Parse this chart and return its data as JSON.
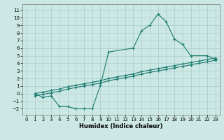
{
  "line1_x": [
    1,
    2,
    3,
    4,
    5,
    6,
    7,
    8,
    9,
    10,
    13,
    14,
    15,
    16,
    17,
    18,
    19,
    20,
    22,
    23
  ],
  "line1_y": [
    0.0,
    -0.5,
    -0.3,
    -1.7,
    -1.7,
    -2.0,
    -2.0,
    -2.0,
    1.1,
    5.5,
    6.0,
    8.3,
    9.0,
    10.5,
    9.5,
    7.2,
    6.5,
    5.0,
    5.0,
    4.5
  ],
  "line2_x": [
    1,
    2,
    3,
    4,
    5,
    6,
    7,
    8,
    9,
    10,
    11,
    12,
    13,
    14,
    15,
    16,
    17,
    18,
    19,
    20,
    21,
    22,
    23
  ],
  "line2_y": [
    0.0,
    0.2,
    0.4,
    0.6,
    0.9,
    1.1,
    1.3,
    1.5,
    1.7,
    2.0,
    2.2,
    2.4,
    2.6,
    2.9,
    3.1,
    3.3,
    3.5,
    3.7,
    3.9,
    4.1,
    4.3,
    4.5,
    4.7
  ],
  "line3_x": [
    1,
    2,
    3,
    4,
    5,
    6,
    7,
    8,
    9,
    10,
    11,
    12,
    13,
    14,
    15,
    16,
    17,
    18,
    19,
    20,
    21,
    22,
    23
  ],
  "line3_y": [
    -0.3,
    -0.1,
    0.1,
    0.3,
    0.6,
    0.8,
    1.0,
    1.2,
    1.4,
    1.7,
    1.9,
    2.1,
    2.3,
    2.6,
    2.8,
    3.0,
    3.2,
    3.4,
    3.6,
    3.8,
    4.0,
    4.2,
    4.4
  ],
  "line_color": "#1a7a6e",
  "bg_color": "#cce8e4",
  "grid_color": "#aaccca",
  "xlabel": "Humidex (Indice chaleur)",
  "xlim": [
    -0.5,
    23.5
  ],
  "ylim": [
    -2.8,
    11.8
  ],
  "yticks": [
    -2,
    -1,
    0,
    1,
    2,
    3,
    4,
    5,
    6,
    7,
    8,
    9,
    10,
    11
  ],
  "xticks": [
    0,
    1,
    2,
    3,
    4,
    5,
    6,
    7,
    8,
    9,
    10,
    11,
    12,
    13,
    14,
    15,
    16,
    17,
    18,
    19,
    20,
    21,
    22,
    23
  ],
  "marker": "+",
  "markersize": 3.5,
  "linewidth": 0.8
}
